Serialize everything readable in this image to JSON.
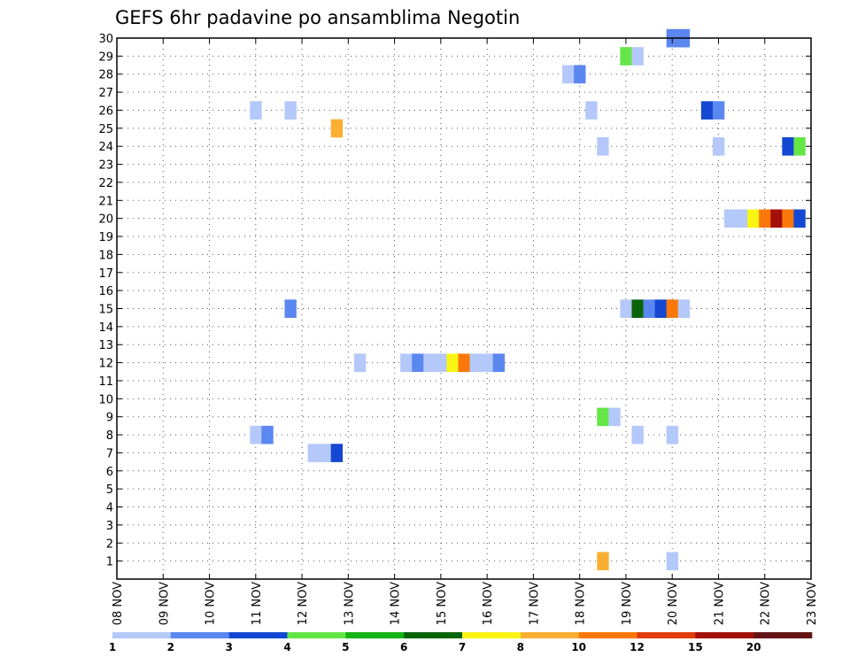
{
  "chart_data": {
    "type": "heatmap",
    "title": "GEFS 6hr padavine po ansamblima Negotin",
    "xlabel": "",
    "ylabel": "",
    "x_ticks": [
      "08 NOV",
      "09 NOV",
      "10 NOV",
      "11 NOV",
      "12 NOV",
      "13 NOV",
      "14 NOV",
      "15 NOV",
      "16 NOV",
      "17 NOV",
      "18 NOV",
      "19 NOV",
      "20 NOV",
      "21 NOV",
      "22 NOV",
      "23 NOV"
    ],
    "x_range_days": [
      8,
      23
    ],
    "y_ticks": [
      1,
      2,
      3,
      4,
      5,
      6,
      7,
      8,
      9,
      10,
      11,
      12,
      13,
      14,
      15,
      16,
      17,
      18,
      19,
      20,
      21,
      22,
      23,
      24,
      25,
      26,
      27,
      28,
      29,
      30
    ],
    "y_range": [
      0,
      30
    ],
    "grid": true,
    "colorbar": {
      "levels": [
        "1",
        "2",
        "3",
        "4",
        "5",
        "6",
        "7",
        "8",
        "10",
        "12",
        "15",
        "20"
      ],
      "colors": [
        "#b4c8fa",
        "#5a87f0",
        "#1448d2",
        "#64e646",
        "#14b414",
        "#0a640a",
        "#faf514",
        "#faaf32",
        "#fa780a",
        "#e13c0a",
        "#a50f0a",
        "#641414"
      ]
    },
    "cells": [
      {
        "member": 30,
        "day": 20.0,
        "color": "#5a87f0"
      },
      {
        "member": 30,
        "day": 20.25,
        "color": "#5a87f0"
      },
      {
        "member": 29,
        "day": 19.0,
        "color": "#64e646"
      },
      {
        "member": 29,
        "day": 19.25,
        "color": "#b4c8fa"
      },
      {
        "member": 28,
        "day": 17.75,
        "color": "#b4c8fa"
      },
      {
        "member": 28,
        "day": 18.0,
        "color": "#5a87f0"
      },
      {
        "member": 26,
        "day": 11.0,
        "color": "#b4c8fa"
      },
      {
        "member": 26,
        "day": 11.75,
        "color": "#b4c8fa"
      },
      {
        "member": 26,
        "day": 18.25,
        "color": "#b4c8fa"
      },
      {
        "member": 26,
        "day": 20.75,
        "color": "#1448d2"
      },
      {
        "member": 26,
        "day": 21.0,
        "color": "#5a87f0"
      },
      {
        "member": 25,
        "day": 12.75,
        "color": "#faaf32"
      },
      {
        "member": 24,
        "day": 18.5,
        "color": "#b4c8fa"
      },
      {
        "member": 24,
        "day": 21.0,
        "color": "#b4c8fa"
      },
      {
        "member": 24,
        "day": 22.5,
        "color": "#1448d2"
      },
      {
        "member": 24,
        "day": 22.75,
        "color": "#64e646"
      },
      {
        "member": 20,
        "day": 21.25,
        "color": "#b4c8fa"
      },
      {
        "member": 20,
        "day": 21.5,
        "color": "#b4c8fa"
      },
      {
        "member": 20,
        "day": 21.75,
        "color": "#faf514"
      },
      {
        "member": 20,
        "day": 22.0,
        "color": "#fa780a"
      },
      {
        "member": 20,
        "day": 22.25,
        "color": "#a50f0a"
      },
      {
        "member": 20,
        "day": 22.5,
        "color": "#fa780a"
      },
      {
        "member": 20,
        "day": 22.75,
        "color": "#1448d2"
      },
      {
        "member": 15,
        "day": 11.75,
        "color": "#5a87f0"
      },
      {
        "member": 15,
        "day": 19.0,
        "color": "#b4c8fa"
      },
      {
        "member": 15,
        "day": 19.25,
        "color": "#0a640a"
      },
      {
        "member": 15,
        "day": 19.5,
        "color": "#5a87f0"
      },
      {
        "member": 15,
        "day": 19.75,
        "color": "#1448d2"
      },
      {
        "member": 15,
        "day": 20.0,
        "color": "#fa780a"
      },
      {
        "member": 15,
        "day": 20.25,
        "color": "#b4c8fa"
      },
      {
        "member": 12,
        "day": 13.25,
        "color": "#b4c8fa"
      },
      {
        "member": 12,
        "day": 14.25,
        "color": "#b4c8fa"
      },
      {
        "member": 12,
        "day": 14.5,
        "color": "#5a87f0"
      },
      {
        "member": 12,
        "day": 14.75,
        "color": "#b4c8fa"
      },
      {
        "member": 12,
        "day": 15.0,
        "color": "#b4c8fa"
      },
      {
        "member": 12,
        "day": 15.25,
        "color": "#faf514"
      },
      {
        "member": 12,
        "day": 15.5,
        "color": "#fa780a"
      },
      {
        "member": 12,
        "day": 15.75,
        "color": "#b4c8fa"
      },
      {
        "member": 12,
        "day": 16.0,
        "color": "#b4c8fa"
      },
      {
        "member": 12,
        "day": 16.25,
        "color": "#5a87f0"
      },
      {
        "member": 9,
        "day": 18.5,
        "color": "#64e646"
      },
      {
        "member": 9,
        "day": 18.75,
        "color": "#b4c8fa"
      },
      {
        "member": 8,
        "day": 11.0,
        "color": "#b4c8fa"
      },
      {
        "member": 8,
        "day": 11.25,
        "color": "#5a87f0"
      },
      {
        "member": 8,
        "day": 19.25,
        "color": "#b4c8fa"
      },
      {
        "member": 8,
        "day": 20.0,
        "color": "#b4c8fa"
      },
      {
        "member": 7,
        "day": 12.25,
        "color": "#b4c8fa"
      },
      {
        "member": 7,
        "day": 12.5,
        "color": "#b4c8fa"
      },
      {
        "member": 7,
        "day": 12.75,
        "color": "#1448d2"
      },
      {
        "member": 1,
        "day": 18.5,
        "color": "#faaf32"
      },
      {
        "member": 1,
        "day": 20.0,
        "color": "#b4c8fa"
      }
    ]
  }
}
